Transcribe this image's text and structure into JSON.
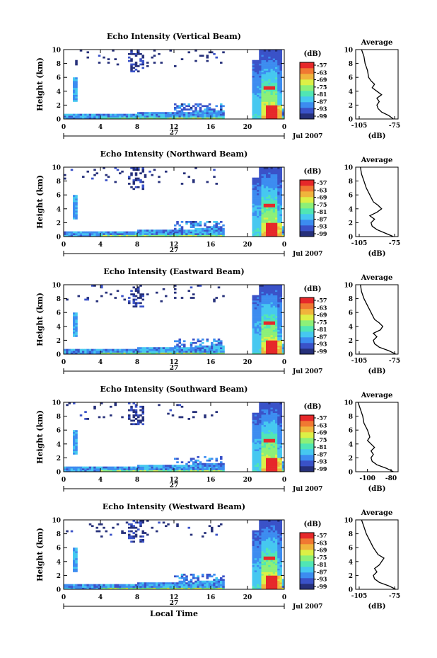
{
  "figure": {
    "colorbar_unit": "(dB)",
    "colorbar_ticks": [
      "-57",
      "-63",
      "-69",
      "-75",
      "-81",
      "-87",
      "-93",
      "-99"
    ],
    "date_day": "27",
    "date_label": "Jul 2007",
    "xlabel_bottom": "Local Time",
    "avg_title": "Average",
    "avg_unit": "(dB)",
    "colormap": [
      "#26307a",
      "#3a52c8",
      "#3c8cf0",
      "#46c8f0",
      "#50e6b4",
      "#8cf078",
      "#dcf046",
      "#f0b43c",
      "#f07832",
      "#e6282a"
    ]
  },
  "chart_data": [
    {
      "type": "heatmap",
      "title": "Echo Intensity (Vertical Beam)",
      "ylabel": "Height (km)",
      "xlabel": "",
      "x_ticks": [
        "0",
        "4",
        "8",
        "12",
        "16",
        "20",
        "0"
      ],
      "y_ticks": [
        "0",
        "2",
        "4",
        "6",
        "8",
        "10"
      ],
      "xlim": [
        0,
        24
      ],
      "ylim": [
        0,
        10
      ],
      "clim": [
        -99,
        -57
      ],
      "average": {
        "xlabel": "(dB)",
        "x_ticks": [
          "-105",
          "-75"
        ],
        "xlim": [
          -108,
          -72
        ],
        "y_ticks": [
          "0",
          "2",
          "4",
          "6",
          "8",
          "10"
        ],
        "ylim": [
          0,
          10
        ],
        "profile": [
          [
            -76,
            0
          ],
          [
            -80,
            0.5
          ],
          [
            -86,
            1
          ],
          [
            -89,
            1.5
          ],
          [
            -90,
            2
          ],
          [
            -88,
            2.5
          ],
          [
            -90,
            3
          ],
          [
            -86,
            3.5
          ],
          [
            -90,
            4
          ],
          [
            -94,
            4.5
          ],
          [
            -92,
            5
          ],
          [
            -95,
            5.5
          ],
          [
            -97,
            6
          ],
          [
            -98,
            7
          ],
          [
            -100,
            8
          ],
          [
            -101,
            9
          ],
          [
            -103,
            10
          ]
        ]
      }
    },
    {
      "type": "heatmap",
      "title": "Echo Intensity (Northward Beam)",
      "ylabel": "Height (km)",
      "xlabel": "",
      "x_ticks": [
        "0",
        "4",
        "8",
        "12",
        "16",
        "20",
        "0"
      ],
      "y_ticks": [
        "0",
        "2",
        "4",
        "6",
        "8",
        "10"
      ],
      "xlim": [
        0,
        24
      ],
      "ylim": [
        0,
        10
      ],
      "clim": [
        -99,
        -57
      ],
      "average": {
        "xlabel": "(dB)",
        "x_ticks": [
          "-105",
          "-75"
        ],
        "xlim": [
          -108,
          -72
        ],
        "y_ticks": [
          "0",
          "2",
          "4",
          "6",
          "8",
          "10"
        ],
        "ylim": [
          0,
          10
        ],
        "profile": [
          [
            -76,
            0
          ],
          [
            -83,
            0.5
          ],
          [
            -90,
            1
          ],
          [
            -94,
            1.5
          ],
          [
            -95,
            2
          ],
          [
            -92,
            2.5
          ],
          [
            -96,
            3
          ],
          [
            -90,
            3.5
          ],
          [
            -86,
            4
          ],
          [
            -89,
            4.5
          ],
          [
            -93,
            5
          ],
          [
            -96,
            6
          ],
          [
            -99,
            7
          ],
          [
            -101,
            8
          ],
          [
            -103,
            9
          ],
          [
            -104,
            10
          ]
        ]
      }
    },
    {
      "type": "heatmap",
      "title": "Echo Intensity (Eastward Beam)",
      "ylabel": "Height (km)",
      "xlabel": "",
      "x_ticks": [
        "0",
        "4",
        "8",
        "12",
        "16",
        "20",
        "0"
      ],
      "y_ticks": [
        "0",
        "2",
        "4",
        "6",
        "8",
        "10"
      ],
      "xlim": [
        0,
        24
      ],
      "ylim": [
        0,
        10
      ],
      "clim": [
        -99,
        -57
      ],
      "average": {
        "xlabel": "(dB)",
        "x_ticks": [
          "-105",
          "-75"
        ],
        "xlim": [
          -108,
          -72
        ],
        "y_ticks": [
          "0",
          "2",
          "4",
          "6",
          "8",
          "10"
        ],
        "ylim": [
          0,
          10
        ],
        "profile": [
          [
            -74,
            0
          ],
          [
            -80,
            0.5
          ],
          [
            -88,
            1
          ],
          [
            -92,
            1.5
          ],
          [
            -93,
            2
          ],
          [
            -90,
            2.5
          ],
          [
            -93,
            3
          ],
          [
            -87,
            3.5
          ],
          [
            -85,
            4
          ],
          [
            -88,
            4.5
          ],
          [
            -92,
            5
          ],
          [
            -95,
            6
          ],
          [
            -98,
            7
          ],
          [
            -101,
            8
          ],
          [
            -103,
            9
          ],
          [
            -104,
            10
          ]
        ]
      }
    },
    {
      "type": "heatmap",
      "title": "Echo Intensity (Southward Beam)",
      "ylabel": "Height (km)",
      "xlabel": "",
      "x_ticks": [
        "0",
        "4",
        "8",
        "12",
        "16",
        "20",
        "0"
      ],
      "y_ticks": [
        "0",
        "2",
        "4",
        "6",
        "8",
        "10"
      ],
      "xlim": [
        0,
        24
      ],
      "ylim": [
        0,
        10
      ],
      "clim": [
        -99,
        -57
      ],
      "average": {
        "xlabel": "(dB)",
        "x_ticks": [
          "-100",
          "-80"
        ],
        "xlim": [
          -110,
          -74
        ],
        "y_ticks": [
          "0",
          "2",
          "4",
          "6",
          "8",
          "10"
        ],
        "ylim": [
          0,
          10
        ],
        "profile": [
          [
            -78,
            0
          ],
          [
            -84,
            0.5
          ],
          [
            -92,
            1
          ],
          [
            -96,
            1.5
          ],
          [
            -97,
            2
          ],
          [
            -95,
            2.5
          ],
          [
            -97,
            3
          ],
          [
            -94,
            3.5
          ],
          [
            -97,
            4
          ],
          [
            -100,
            4.5
          ],
          [
            -98,
            5
          ],
          [
            -100,
            6
          ],
          [
            -103,
            7
          ],
          [
            -104,
            8
          ],
          [
            -106,
            9
          ],
          [
            -108,
            10
          ]
        ]
      }
    },
    {
      "type": "heatmap",
      "title": "Echo Intensity (Westward Beam)",
      "ylabel": "Height (km)",
      "xlabel": "Local Time",
      "x_ticks": [
        "0",
        "4",
        "8",
        "12",
        "16",
        "20",
        "0"
      ],
      "y_ticks": [
        "0",
        "2",
        "4",
        "6",
        "8",
        "10"
      ],
      "xlim": [
        0,
        24
      ],
      "ylim": [
        0,
        10
      ],
      "clim": [
        -99,
        -57
      ],
      "average": {
        "xlabel": "(dB)",
        "x_ticks": [
          "-105",
          "-75"
        ],
        "xlim": [
          -108,
          -72
        ],
        "y_ticks": [
          "0",
          "2",
          "4",
          "6",
          "8",
          "10"
        ],
        "ylim": [
          0,
          10
        ],
        "profile": [
          [
            -74,
            0
          ],
          [
            -80,
            0.5
          ],
          [
            -88,
            1
          ],
          [
            -92,
            1.5
          ],
          [
            -93,
            2
          ],
          [
            -90,
            2.5
          ],
          [
            -92,
            3
          ],
          [
            -88,
            3.5
          ],
          [
            -86,
            4
          ],
          [
            -84,
            4.5
          ],
          [
            -89,
            5
          ],
          [
            -93,
            6
          ],
          [
            -96,
            7
          ],
          [
            -99,
            8
          ],
          [
            -101,
            9
          ],
          [
            -103,
            10
          ]
        ]
      }
    }
  ]
}
